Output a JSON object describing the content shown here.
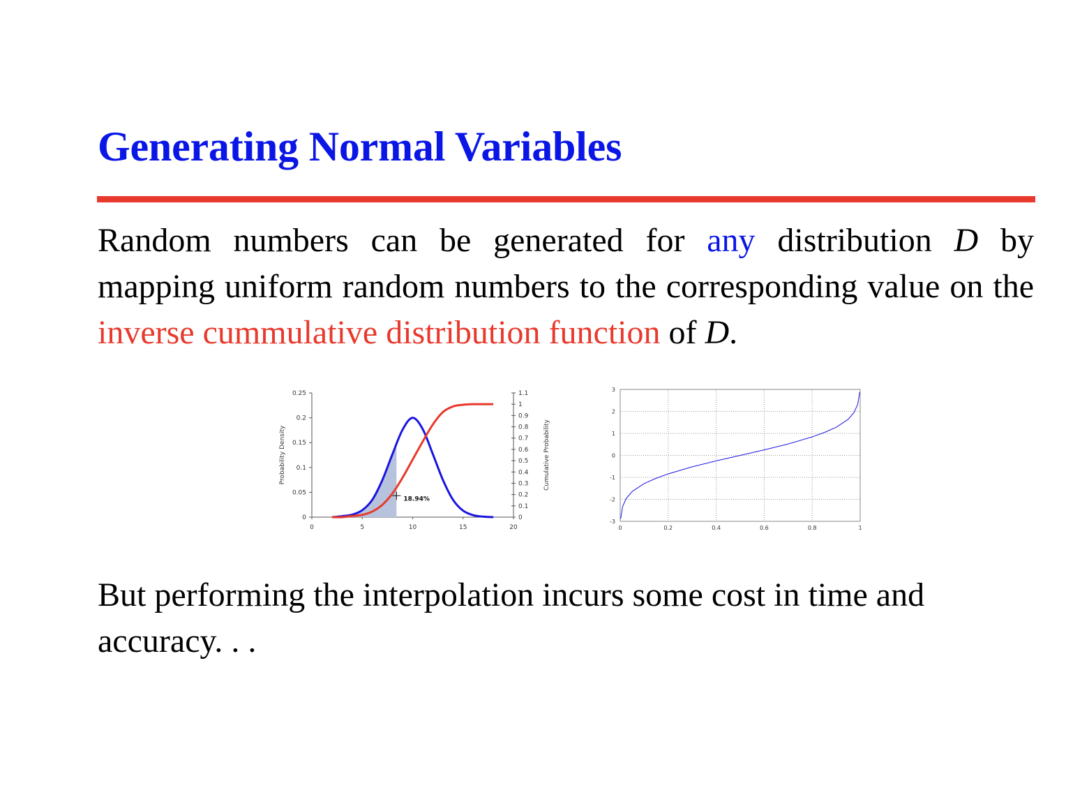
{
  "slide": {
    "title": "Generating Normal Variables",
    "para1": {
      "seg1": "Random numbers can be generated for ",
      "highlight_any": "any",
      "seg2": " distribution ",
      "var_d1": "D",
      "seg3": " by mapping uniform random numbers to the corresponding value on the ",
      "highlight_icdf": "inverse cummulative distribution function",
      "seg4": " of ",
      "var_d2": "D",
      "seg5": "."
    },
    "para2": "But performing the interpolation incurs some cost in time and accuracy. . ."
  },
  "colors": {
    "title": "#0a16e6",
    "rule": "#e8392c",
    "blue_curve": "#1a14e0",
    "red_curve": "#e8392c",
    "shade": "#b7c3dc"
  },
  "chart_data": [
    {
      "type": "line",
      "title": "",
      "xlabel": "",
      "ylabel": "Probability Density",
      "y2label": "Cumulative Probability",
      "xlim": [
        0,
        20
      ],
      "ylim": [
        0,
        0.25
      ],
      "y2lim": [
        0,
        1.1
      ],
      "xticks": [
        "0",
        "5",
        "10",
        "15",
        "20"
      ],
      "yticks": [
        "0",
        "0.05",
        "0.1",
        "0.15",
        "0.2",
        "0.25"
      ],
      "y2ticks": [
        "0",
        "0.1",
        "0.2",
        "0.3",
        "0.4",
        "0.5",
        "0.6",
        "0.7",
        "0.8",
        "0.9",
        "1",
        "1.1"
      ],
      "annotation": "18.94%",
      "shaded_x_range": [
        2,
        8.4
      ],
      "series": [
        {
          "axis": "left",
          "x": [
            2,
            3,
            4,
            5,
            6,
            7,
            8,
            9,
            10,
            11,
            12,
            13,
            14,
            15,
            16,
            17,
            18
          ],
          "values": [
            0.0,
            0.002,
            0.005,
            0.014,
            0.035,
            0.075,
            0.127,
            0.176,
            0.2,
            0.177,
            0.127,
            0.075,
            0.035,
            0.013,
            0.004,
            0.001,
            0.0
          ]
        },
        {
          "axis": "right",
          "x": [
            2,
            3,
            4,
            5,
            6,
            7,
            8,
            9,
            10,
            11,
            12,
            13,
            14,
            15,
            16,
            17,
            18
          ],
          "values": [
            0.0,
            0.0,
            0.01,
            0.02,
            0.05,
            0.11,
            0.21,
            0.35,
            0.51,
            0.67,
            0.82,
            0.93,
            0.98,
            0.995,
            1.0,
            1.0,
            1.0
          ]
        }
      ]
    },
    {
      "type": "line",
      "title": "",
      "xlabel": "",
      "ylabel": "",
      "xlim": [
        0,
        1
      ],
      "ylim": [
        -3,
        3
      ],
      "grid": true,
      "xticks": [
        "0",
        "0.2",
        "0.4",
        "0.6",
        "0.8",
        "1"
      ],
      "yticks": [
        "-3",
        "-2",
        "-1",
        "0",
        "1",
        "2",
        "3"
      ],
      "series": [
        {
          "x": [
            0.002,
            0.01,
            0.025,
            0.05,
            0.1,
            0.15,
            0.2,
            0.3,
            0.4,
            0.5,
            0.6,
            0.7,
            0.8,
            0.85,
            0.9,
            0.95,
            0.975,
            0.99,
            0.998
          ],
          "values": [
            -2.88,
            -2.33,
            -1.96,
            -1.64,
            -1.28,
            -1.04,
            -0.84,
            -0.52,
            -0.25,
            0.0,
            0.25,
            0.52,
            0.84,
            1.04,
            1.28,
            1.64,
            1.96,
            2.33,
            2.88
          ]
        }
      ]
    }
  ]
}
